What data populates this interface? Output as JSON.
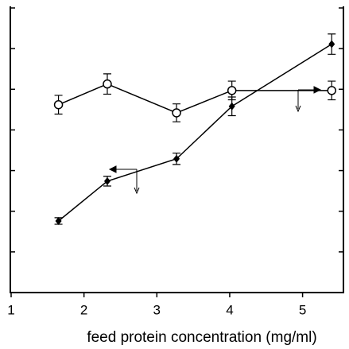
{
  "chart_data": {
    "type": "line",
    "x_label": "feed protein concentration (mg/ml)",
    "xlim": [
      1,
      5.55
    ],
    "xticks": [
      1,
      2,
      3,
      4,
      5
    ],
    "ylim": [
      0,
      7
    ],
    "yticks": [
      0,
      1,
      2,
      3,
      4,
      5,
      6,
      7
    ],
    "y2lim": [
      0,
      7
    ],
    "y2ticks": [
      0,
      1,
      2,
      3,
      4,
      5,
      6,
      7
    ],
    "series": [
      {
        "marker": "diamond",
        "color": "#000000",
        "x": [
          1.65,
          2.32,
          3.27,
          4.03,
          5.4
        ],
        "values": [
          1.76,
          2.74,
          3.29,
          4.58,
          6.11
        ],
        "errors": [
          0.08,
          0.12,
          0.14,
          0.23,
          0.25
        ]
      },
      {
        "marker": "circle",
        "color": "#000000",
        "axis": "y2",
        "x": [
          1.65,
          2.32,
          3.27,
          4.03,
          5.4
        ],
        "values": [
          4.62,
          5.13,
          4.42,
          4.97,
          4.97
        ],
        "errors": [
          0.23,
          0.25,
          0.22,
          0.23,
          0.23
        ]
      }
    ]
  }
}
